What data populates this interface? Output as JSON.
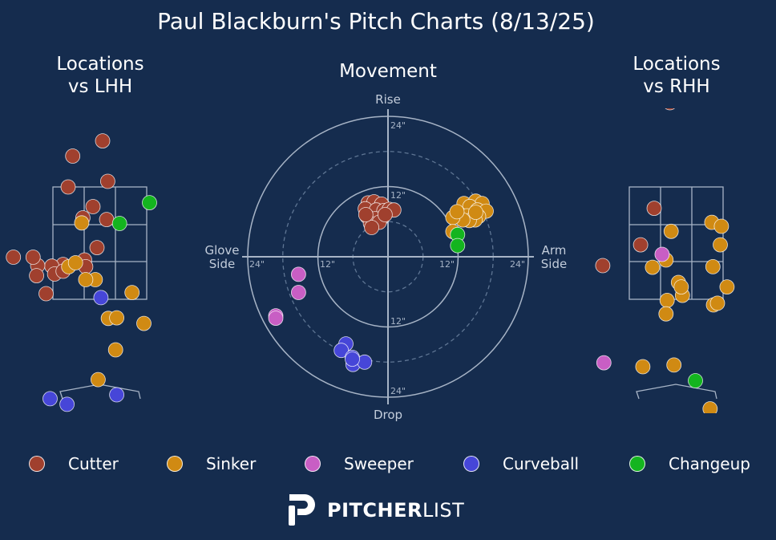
{
  "title": "Paul Blackburn's Pitch Charts (8/13/25)",
  "panels": {
    "lhh_title_1": "Locations",
    "lhh_title_2": "vs LHH",
    "movement_title": "Movement",
    "rhh_title_1": "Locations",
    "rhh_title_2": "vs RHH"
  },
  "movement_labels": {
    "top": "Rise",
    "bottom": "Drop",
    "left_1": "Glove",
    "left_2": "Side",
    "right_1": "Arm",
    "right_2": "Side",
    "rings": [
      "12\"",
      "24\""
    ]
  },
  "legend": [
    {
      "label": "Cutter",
      "color": "#a0402e"
    },
    {
      "label": "Sinker",
      "color": "#d08a13"
    },
    {
      "label": "Sweeper",
      "color": "#c85ec4"
    },
    {
      "label": "Curveball",
      "color": "#4646d8"
    },
    {
      "label": "Changeup",
      "color": "#14b41f"
    }
  ],
  "logo": {
    "bold": "PITCHER",
    "thin": "LIST"
  },
  "chart_data": [
    {
      "type": "scatter",
      "name": "Locations vs LHH",
      "title": "Locations vs LHH",
      "x_units": "feet from plate center (catcher view)",
      "y_units": "feet above ground",
      "strike_zone": {
        "x": [
          -0.83,
          0.83
        ],
        "y": [
          1.5,
          3.5
        ]
      },
      "series": [
        {
          "name": "Cutter",
          "points": [
            [
              0.05,
              4.32
            ],
            [
              -0.48,
              4.05
            ],
            [
              0.14,
              3.6
            ],
            [
              -0.56,
              3.5
            ],
            [
              -0.12,
              3.15
            ],
            [
              -0.3,
              2.95
            ],
            [
              0.12,
              2.92
            ],
            [
              -1.53,
              2.25
            ],
            [
              -0.05,
              2.42
            ],
            [
              -0.27,
              2.2
            ],
            [
              -0.65,
              2.12
            ],
            [
              -0.85,
              2.09
            ],
            [
              -1.1,
              2.1
            ],
            [
              -0.8,
              1.95
            ],
            [
              -0.25,
              2.08
            ],
            [
              -1.18,
              2.25
            ],
            [
              -0.65,
              2.0
            ],
            [
              -1.12,
              1.92
            ],
            [
              -0.95,
              1.6
            ]
          ]
        },
        {
          "name": "Sinker",
          "points": [
            [
              -0.32,
              2.86
            ],
            [
              -0.55,
              2.08
            ],
            [
              -0.43,
              2.15
            ],
            [
              -0.08,
              1.85
            ],
            [
              -0.25,
              1.85
            ],
            [
              0.57,
              1.62
            ],
            [
              0.15,
              1.16
            ],
            [
              0.3,
              1.17
            ],
            [
              0.78,
              1.07
            ],
            [
              0.28,
              0.6
            ],
            [
              -0.03,
              0.07
            ]
          ]
        },
        {
          "name": "Curveball",
          "points": [
            [
              -0.88,
              -0.27
            ],
            [
              -0.58,
              -0.37
            ],
            [
              0.3,
              -0.2
            ],
            [
              0.02,
              1.53
            ],
            [
              -0.42,
              -1.37
            ]
          ]
        },
        {
          "name": "Changeup",
          "points": [
            [
              0.35,
              2.85
            ],
            [
              0.88,
              3.22
            ]
          ]
        }
      ]
    },
    {
      "type": "scatter",
      "name": "Movement",
      "title": "Movement",
      "x_units": "inches (left: Glove Side, right: Arm Side)",
      "y_units": "inches (up: Rise, down: Drop)",
      "rings": [
        6,
        12,
        18,
        24
      ],
      "axis_range": [
        -24,
        24
      ],
      "series": [
        {
          "name": "Cutter",
          "points": [
            [
              -3.4,
              9.2
            ],
            [
              -2.4,
              9.4
            ],
            [
              -1.1,
              9.0
            ],
            [
              -3.9,
              8.2
            ],
            [
              -2.0,
              8.0
            ],
            [
              -0.7,
              7.9
            ],
            [
              0.2,
              8.1
            ],
            [
              1.0,
              8.0
            ],
            [
              -3.6,
              6.9
            ],
            [
              -1.1,
              6.6
            ],
            [
              -2.2,
              6.5
            ],
            [
              -3.0,
              5.7
            ],
            [
              -1.5,
              5.9
            ],
            [
              -2.8,
              5.0
            ],
            [
              -3.8,
              7.2
            ],
            [
              -0.5,
              7.2
            ]
          ]
        },
        {
          "name": "Sinker",
          "points": [
            [
              13.0,
              9.1
            ],
            [
              15.0,
              9.5
            ],
            [
              16.1,
              9.1
            ],
            [
              14.0,
              8.6
            ],
            [
              15.3,
              8.0
            ],
            [
              16.8,
              7.8
            ],
            [
              12.1,
              7.4
            ],
            [
              13.5,
              7.0
            ],
            [
              15.5,
              6.9
            ],
            [
              14.9,
              6.3
            ],
            [
              13.9,
              6.2
            ],
            [
              12.8,
              6.3
            ],
            [
              11.1,
              6.7
            ],
            [
              11.8,
              7.7
            ],
            [
              15.0,
              7.6
            ],
            [
              11.1,
              4.3
            ]
          ]
        },
        {
          "name": "Sweeper",
          "points": [
            [
              -15.3,
              -3.0
            ],
            [
              -15.3,
              -6.1
            ],
            [
              -19.2,
              -10.1
            ],
            [
              -19.2,
              -10.5
            ]
          ]
        },
        {
          "name": "Curveball",
          "points": [
            [
              -7.2,
              -14.9
            ],
            [
              -8.0,
              -16.0
            ],
            [
              -6.1,
              -17.2
            ],
            [
              -6.0,
              -18.4
            ],
            [
              -4.0,
              -18.0
            ],
            [
              -6.1,
              -17.5
            ]
          ]
        },
        {
          "name": "Changeup",
          "points": [
            [
              11.9,
              3.8
            ],
            [
              11.9,
              1.9
            ]
          ]
        }
      ]
    },
    {
      "type": "scatter",
      "name": "Locations vs RHH",
      "title": "Locations vs RHH",
      "x_units": "feet from plate center (catcher view)",
      "y_units": "feet above ground",
      "strike_zone": {
        "x": [
          -0.83,
          0.83
        ],
        "y": [
          1.5,
          3.5
        ]
      },
      "series": [
        {
          "name": "Cutter",
          "points": [
            [
              -0.11,
              5.0
            ],
            [
              -0.39,
              3.12
            ],
            [
              -0.63,
              2.47
            ],
            [
              -1.3,
              2.1
            ]
          ]
        },
        {
          "name": "Sinker",
          "points": [
            [
              -0.09,
              2.71
            ],
            [
              0.63,
              2.87
            ],
            [
              0.8,
              2.8
            ],
            [
              0.78,
              2.47
            ],
            [
              0.65,
              2.08
            ],
            [
              -0.42,
              2.07
            ],
            [
              -0.18,
              2.2
            ],
            [
              0.04,
              1.8
            ],
            [
              0.9,
              1.72
            ],
            [
              -0.16,
              1.48
            ],
            [
              0.11,
              1.57
            ],
            [
              0.66,
              1.4
            ],
            [
              0.73,
              1.43
            ],
            [
              0.09,
              1.72
            ],
            [
              -0.18,
              1.24
            ],
            [
              -0.59,
              0.3
            ],
            [
              -0.04,
              0.33
            ],
            [
              0.6,
              -0.45
            ]
          ]
        },
        {
          "name": "Sweeper",
          "points": [
            [
              -0.25,
              2.3
            ],
            [
              -1.28,
              0.37
            ]
          ]
        },
        {
          "name": "Changeup",
          "points": [
            [
              0.34,
              0.05
            ]
          ]
        }
      ]
    }
  ]
}
